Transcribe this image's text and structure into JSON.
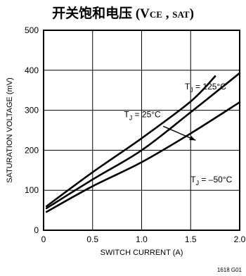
{
  "chart_data": {
    "type": "line",
    "title": {
      "main": "开关饱和电压 (V",
      "sub1": "CE",
      "sep": " , ",
      "sub2": "SAT",
      "close": ")"
    },
    "xlabel": "SWITCH CURRENT (A)",
    "ylabel": "SATURATION VOLTAGE (mV)",
    "xlim": [
      0,
      2.0
    ],
    "ylim": [
      0,
      500
    ],
    "xticks": [
      "0",
      "0.5",
      "1.0",
      "1.5",
      "2.0"
    ],
    "xtick_values": [
      0,
      0.5,
      1.0,
      1.5,
      2.0
    ],
    "yticks": [
      "0",
      "100",
      "200",
      "300",
      "400",
      "500"
    ],
    "ytick_values": [
      0,
      100,
      200,
      300,
      400,
      500
    ],
    "grid": true,
    "series": [
      {
        "name": "T_J = 125°C",
        "x": [
          0.03,
          0.5,
          1.0,
          1.5,
          1.75
        ],
        "y": [
          60,
          145,
          230,
          322,
          385
        ]
      },
      {
        "name": "T_J = 25°C",
        "x": [
          0.03,
          0.5,
          1.0,
          1.5,
          2.0
        ],
        "y": [
          55,
          127,
          200,
          295,
          393
        ]
      },
      {
        "name": "T_J = –50°C",
        "x": [
          0.03,
          0.5,
          1.0,
          1.5,
          2.0
        ],
        "y": [
          46,
          110,
          170,
          242,
          320
        ]
      }
    ],
    "annotations": [
      {
        "series": 0,
        "base": "T",
        "sub": "J",
        "rest": " = 125°C",
        "at": [
          1.44,
          352
        ],
        "arrow": false
      },
      {
        "series": 1,
        "base": "T",
        "sub": "J",
        "rest": " = 25°C",
        "at": [
          0.82,
          283
        ],
        "arrow": true,
        "arrow_from": [
          1.22,
          260
        ],
        "arrow_to": [
          1.55,
          225
        ]
      },
      {
        "series": 2,
        "base": "T",
        "sub": "J",
        "rest": " = –50°C",
        "at": [
          1.5,
          120
        ],
        "arrow": false
      }
    ]
  },
  "figure_id": "1618 G01"
}
